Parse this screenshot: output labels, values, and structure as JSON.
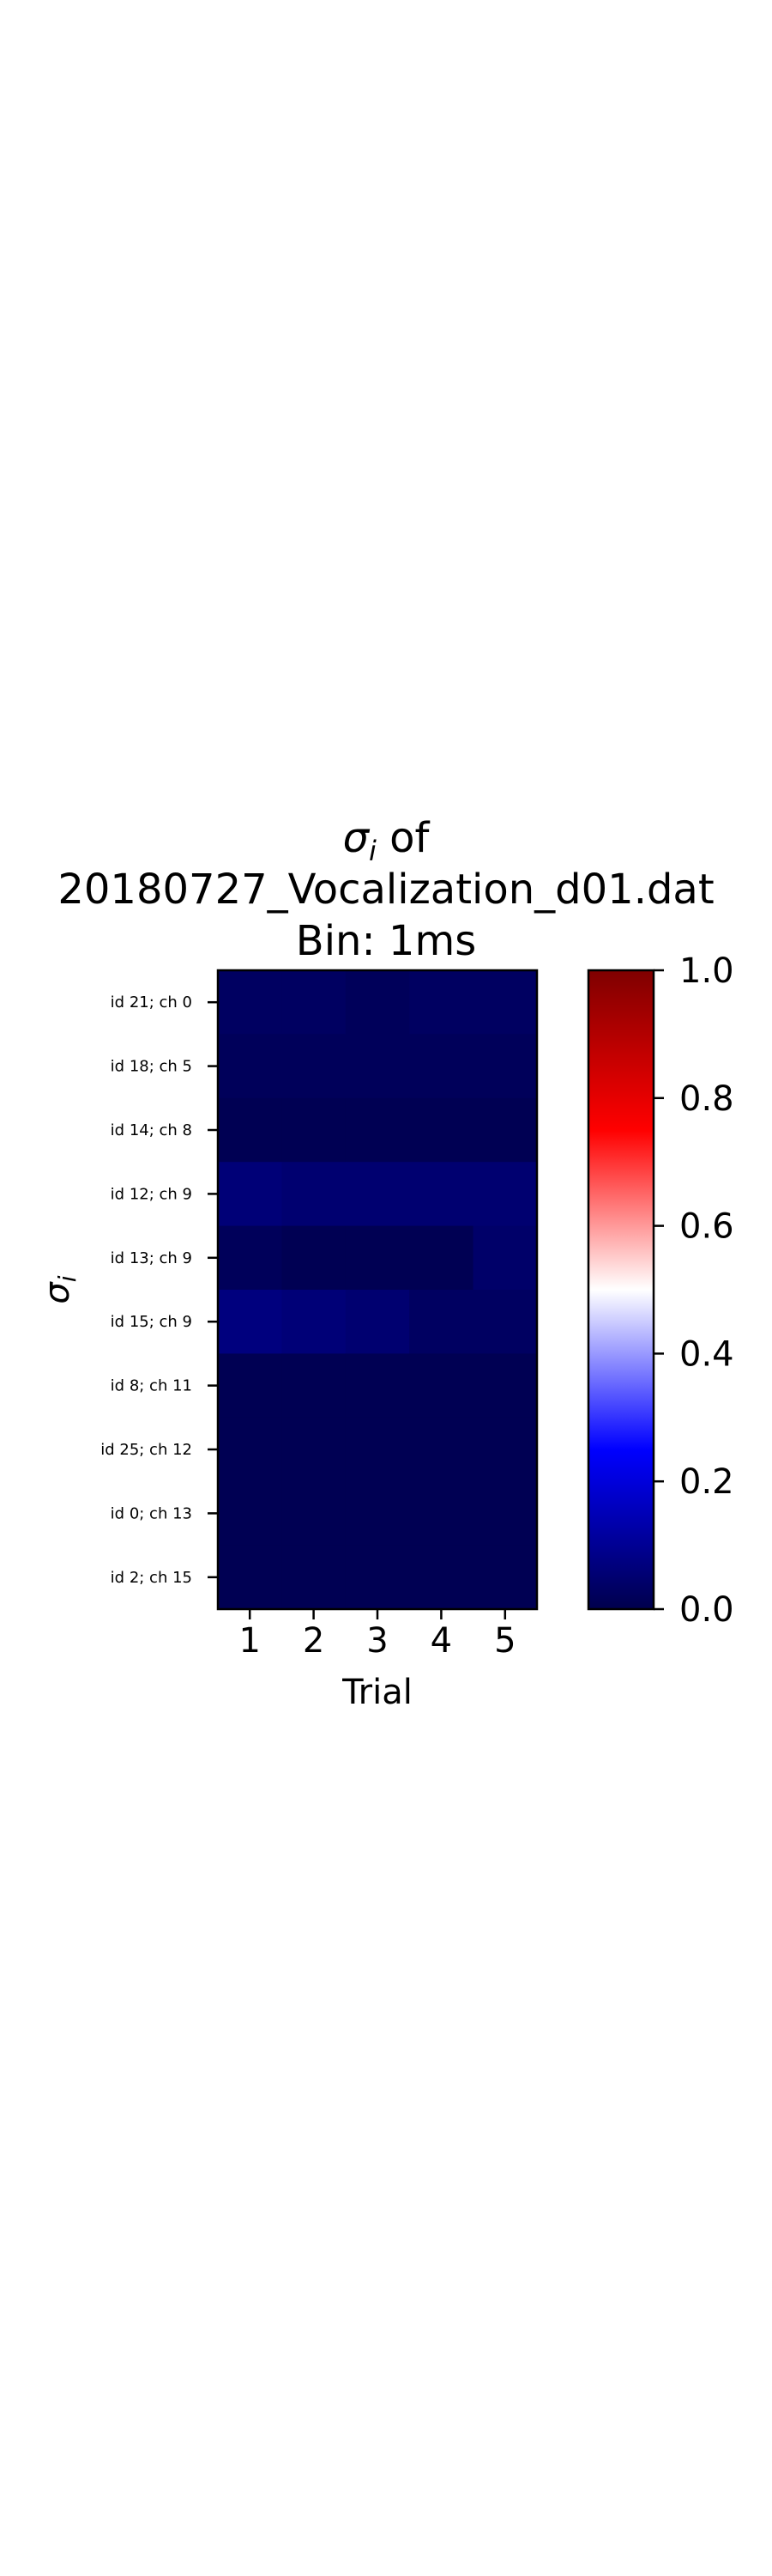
{
  "chart_data": {
    "type": "heatmap",
    "title": {
      "symbol": "σ",
      "symbol_sub": "i",
      "suffix": " of",
      "line2": "20180727_Vocalization_d01.dat",
      "line3": "Bin: 1ms"
    },
    "xlabel": "Trial",
    "ylabel": {
      "symbol": "σ",
      "sub": "i"
    },
    "x_categories": [
      "1",
      "2",
      "3",
      "4",
      "5"
    ],
    "y_categories": [
      "id 21; ch 0",
      "id 18; ch 5",
      "id 14; ch 8",
      "id 12; ch 9",
      "id 13; ch 9",
      "id 15; ch 9",
      "id 8; ch 11",
      "id 25; ch 12",
      "id 0; ch 13",
      "id 2; ch 15"
    ],
    "values": [
      [
        0.03,
        0.03,
        0.02,
        0.03,
        0.03
      ],
      [
        0.02,
        0.02,
        0.02,
        0.02,
        0.02
      ],
      [
        0.01,
        0.01,
        0.01,
        0.01,
        0.01
      ],
      [
        0.06,
        0.05,
        0.05,
        0.05,
        0.05
      ],
      [
        0.02,
        0.01,
        0.01,
        0.01,
        0.04
      ],
      [
        0.07,
        0.06,
        0.05,
        0.03,
        0.03
      ],
      [
        0.01,
        0.01,
        0.01,
        0.01,
        0.01
      ],
      [
        0.01,
        0.01,
        0.01,
        0.01,
        0.01
      ],
      [
        0.01,
        0.01,
        0.01,
        0.01,
        0.01
      ],
      [
        0.01,
        0.01,
        0.01,
        0.01,
        0.01
      ]
    ],
    "colormap": "seismic",
    "vmin": 0.0,
    "vmax": 1.0,
    "colorbar": {
      "ticks": [
        "0.0",
        "0.2",
        "0.4",
        "0.6",
        "0.8",
        "1.0"
      ],
      "position": "right"
    },
    "grid": false
  }
}
